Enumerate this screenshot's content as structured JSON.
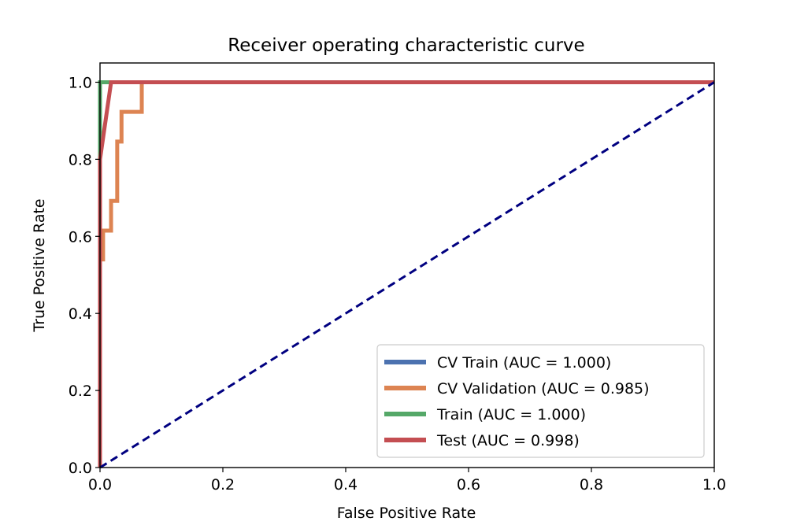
{
  "chart_data": {
    "type": "line",
    "title": "Receiver operating characteristic curve",
    "xlabel": "False Positive Rate",
    "ylabel": "True Positive Rate",
    "xlim": [
      0.0,
      1.0
    ],
    "ylim": [
      0.0,
      1.05
    ],
    "xticks": [
      0.0,
      0.2,
      0.4,
      0.6,
      0.8,
      1.0
    ],
    "yticks": [
      0.0,
      0.2,
      0.4,
      0.6,
      0.8,
      1.0
    ],
    "xtick_labels": [
      "0.0",
      "0.2",
      "0.4",
      "0.6",
      "0.8",
      "1.0"
    ],
    "ytick_labels": [
      "0.0",
      "0.2",
      "0.4",
      "0.6",
      "0.8",
      "1.0"
    ],
    "grid": false,
    "legend_position": "lower-right",
    "series": [
      {
        "name": "CV Train (AUC = 1.000)",
        "color": "#4c72b0",
        "x": [
          0.0,
          0.0,
          1.0
        ],
        "y": [
          0.0,
          1.0,
          1.0
        ]
      },
      {
        "name": "CV Validation (AUC = 0.985)",
        "color": "#dd8452",
        "x": [
          0.0,
          0.0,
          0.005,
          0.005,
          0.012,
          0.012,
          0.018,
          0.018,
          0.028,
          0.028,
          0.035,
          0.035,
          0.068,
          0.068,
          1.0
        ],
        "y": [
          0.0,
          0.54,
          0.54,
          0.615,
          0.615,
          0.615,
          0.615,
          0.692,
          0.692,
          0.846,
          0.846,
          0.923,
          0.923,
          1.0,
          1.0
        ]
      },
      {
        "name": "Train (AUC = 1.000)",
        "color": "#55a868",
        "x": [
          0.0,
          0.0,
          1.0
        ],
        "y": [
          0.0,
          1.0,
          1.0
        ]
      },
      {
        "name": "Test (AUC = 0.998)",
        "color": "#c44e52",
        "x": [
          0.0,
          0.0,
          0.018,
          1.0
        ],
        "y": [
          0.0,
          0.8,
          1.0,
          1.0
        ]
      }
    ],
    "diagonal": {
      "color": "#000080",
      "style": "dashed",
      "x": [
        0.0,
        1.0
      ],
      "y": [
        0.0,
        1.0
      ]
    }
  }
}
